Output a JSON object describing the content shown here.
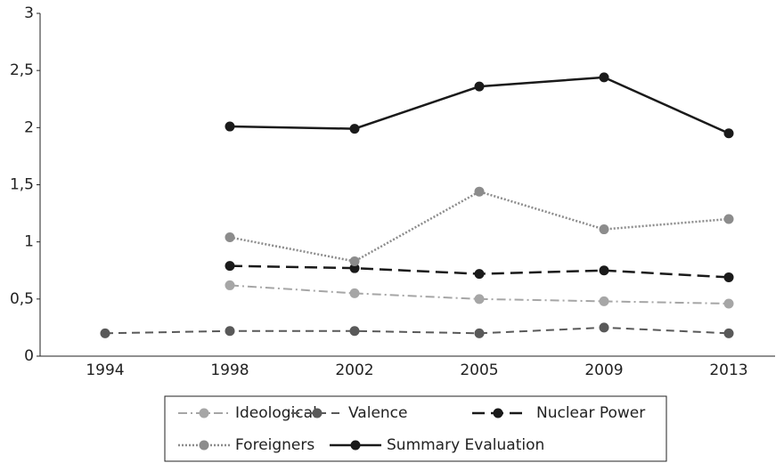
{
  "chart_data": {
    "type": "line",
    "categories": [
      "1994",
      "1998",
      "2002",
      "2005",
      "2009",
      "2013"
    ],
    "series": [
      {
        "name": "Ideological",
        "color": "#a6a6a6",
        "values": [
          null,
          0.62,
          0.55,
          0.5,
          0.48,
          0.46
        ]
      },
      {
        "name": "Valence",
        "color": "#595959",
        "values": [
          0.2,
          0.22,
          0.22,
          0.2,
          0.25,
          0.2
        ]
      },
      {
        "name": "Nuclear Power",
        "color": "#1a1a1a",
        "values": [
          null,
          0.79,
          0.77,
          0.72,
          0.75,
          0.69
        ]
      },
      {
        "name": "Foreigners",
        "color": "#8c8c8c",
        "values": [
          null,
          1.04,
          0.83,
          1.44,
          1.11,
          1.2
        ]
      },
      {
        "name": "Summary Evaluation",
        "color": "#1a1a1a",
        "values": [
          null,
          2.01,
          1.99,
          2.36,
          2.44,
          1.95
        ]
      }
    ],
    "ylim": [
      0,
      3
    ],
    "yticks": [
      0,
      {
        "value": 0.5,
        "label": "0,5"
      },
      1,
      {
        "value": 1.5,
        "label": "1,5"
      },
      2,
      {
        "value": 2.5,
        "label": "2,5"
      },
      3
    ],
    "grid": false
  }
}
